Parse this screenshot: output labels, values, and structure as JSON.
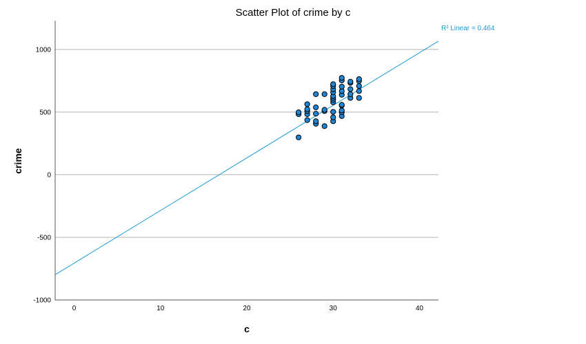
{
  "chart_data": {
    "type": "scatter",
    "title": "Scatter Plot of crime by c",
    "xlabel": "c",
    "ylabel": "crime",
    "xlim": [
      -2.2,
      42.2
    ],
    "ylim": [
      -1000,
      1230
    ],
    "x_ticks": [
      0,
      10,
      20,
      30,
      40
    ],
    "y_ticks": [
      -1000,
      -500,
      0,
      500,
      1000
    ],
    "grid": "horizontal",
    "points": [
      {
        "x": 26,
        "y": 298
      },
      {
        "x": 26,
        "y": 483
      },
      {
        "x": 26,
        "y": 498
      },
      {
        "x": 27,
        "y": 436
      },
      {
        "x": 27,
        "y": 483
      },
      {
        "x": 27,
        "y": 508
      },
      {
        "x": 27,
        "y": 523
      },
      {
        "x": 27,
        "y": 563
      },
      {
        "x": 28,
        "y": 407
      },
      {
        "x": 28,
        "y": 427
      },
      {
        "x": 28,
        "y": 487
      },
      {
        "x": 28,
        "y": 538
      },
      {
        "x": 28,
        "y": 643
      },
      {
        "x": 29,
        "y": 388
      },
      {
        "x": 29,
        "y": 508
      },
      {
        "x": 29,
        "y": 518
      },
      {
        "x": 29,
        "y": 643
      },
      {
        "x": 30,
        "y": 427
      },
      {
        "x": 30,
        "y": 458
      },
      {
        "x": 30,
        "y": 502
      },
      {
        "x": 30,
        "y": 578
      },
      {
        "x": 30,
        "y": 598
      },
      {
        "x": 30,
        "y": 613
      },
      {
        "x": 30,
        "y": 628
      },
      {
        "x": 30,
        "y": 658
      },
      {
        "x": 30,
        "y": 683
      },
      {
        "x": 30,
        "y": 708
      },
      {
        "x": 30,
        "y": 723
      },
      {
        "x": 31,
        "y": 468
      },
      {
        "x": 31,
        "y": 498
      },
      {
        "x": 31,
        "y": 513
      },
      {
        "x": 31,
        "y": 553
      },
      {
        "x": 31,
        "y": 558
      },
      {
        "x": 31,
        "y": 638
      },
      {
        "x": 31,
        "y": 668
      },
      {
        "x": 31,
        "y": 703
      },
      {
        "x": 31,
        "y": 753
      },
      {
        "x": 31,
        "y": 773
      },
      {
        "x": 32,
        "y": 613
      },
      {
        "x": 32,
        "y": 643
      },
      {
        "x": 32,
        "y": 683
      },
      {
        "x": 32,
        "y": 733
      },
      {
        "x": 32,
        "y": 743
      },
      {
        "x": 33,
        "y": 613
      },
      {
        "x": 33,
        "y": 668
      },
      {
        "x": 33,
        "y": 708
      },
      {
        "x": 33,
        "y": 748
      },
      {
        "x": 33,
        "y": 763
      }
    ],
    "fit_line": {
      "label": "R² Linear = 0.464",
      "slope": 42.0,
      "intercept": -706,
      "color": "#1a9ad6"
    },
    "point_color": "#1f86d6",
    "point_edge_color": "#000000"
  }
}
